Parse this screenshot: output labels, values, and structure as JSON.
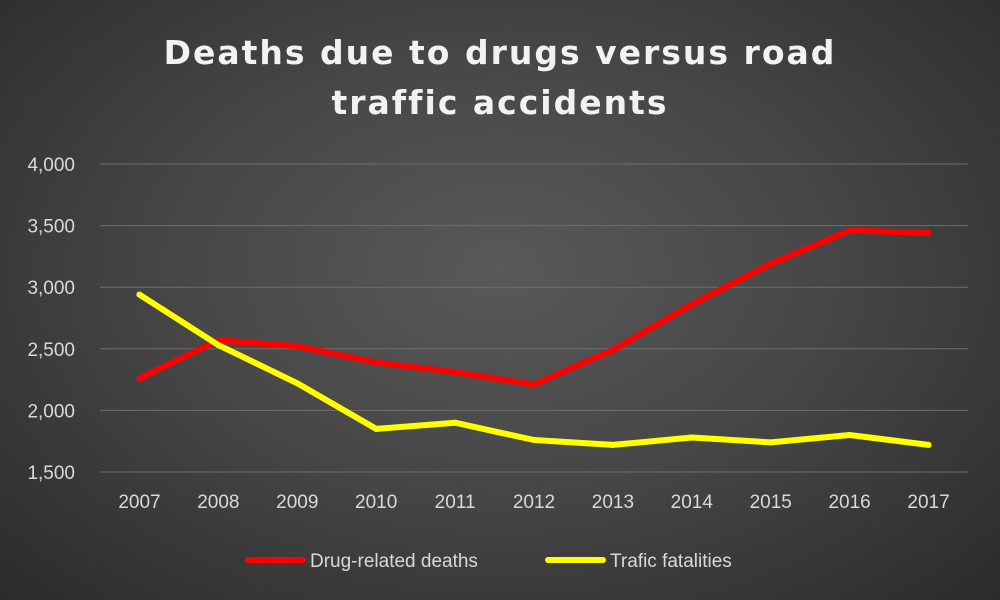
{
  "chart_data": {
    "type": "line",
    "title_lines": [
      "Deaths due to drugs versus road",
      "traffic accidents"
    ],
    "xlabel": "",
    "ylabel": "",
    "categories": [
      "2007",
      "2008",
      "2009",
      "2010",
      "2011",
      "2012",
      "2013",
      "2014",
      "2015",
      "2016",
      "2017"
    ],
    "ylim": [
      1500,
      4000
    ],
    "yticks": [
      1500,
      2000,
      2500,
      3000,
      3500,
      4000
    ],
    "ytick_labels": [
      "1,500",
      "2,000",
      "2,500",
      "3,000",
      "3,500",
      "4,000"
    ],
    "grid": true,
    "legend_position": "bottom",
    "series": [
      {
        "name": "Drug-related deaths",
        "color": "#ff0000",
        "values": [
          2260,
          2570,
          2520,
          2390,
          2310,
          2210,
          2490,
          2860,
          3190,
          3460,
          3440
        ]
      },
      {
        "name": "Trafic fatalities",
        "color": "#ffff00",
        "values": [
          2940,
          2530,
          2220,
          1850,
          1900,
          1760,
          1720,
          1780,
          1740,
          1800,
          1720
        ]
      }
    ]
  },
  "colors": {
    "gridline": "#6e6e6e",
    "text": "#d9d9d9",
    "title": "#f2f2f2"
  }
}
